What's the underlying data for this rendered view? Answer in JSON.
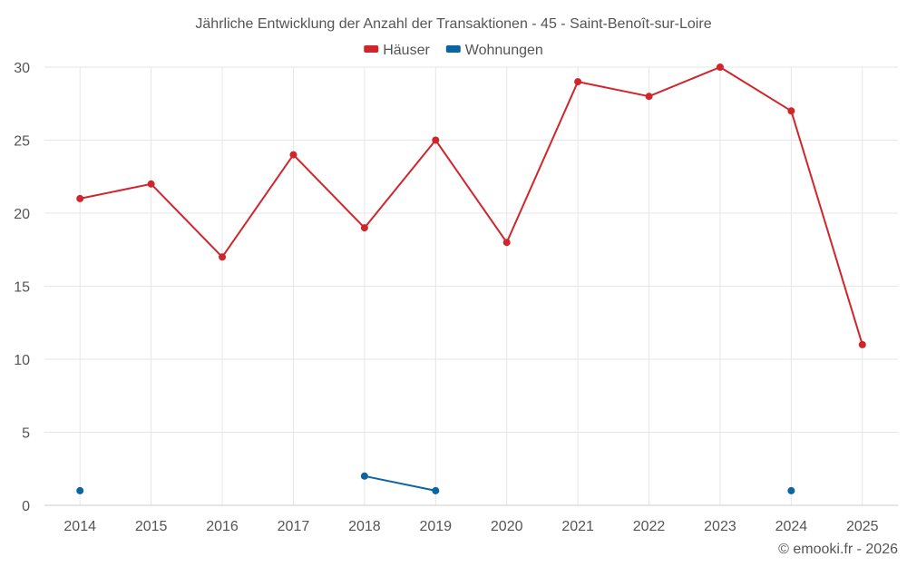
{
  "chart_data": {
    "type": "line",
    "title": "Jährliche Entwicklung der Anzahl der Transaktionen - 45 - Saint-Benoît-sur-Loire",
    "categories": [
      "2014",
      "2015",
      "2016",
      "2017",
      "2018",
      "2019",
      "2020",
      "2021",
      "2022",
      "2023",
      "2024",
      "2025"
    ],
    "ylim": [
      0,
      30
    ],
    "yticks": [
      0,
      5,
      10,
      15,
      20,
      25,
      30
    ],
    "grid": true,
    "legend_position": "top-center",
    "series": [
      {
        "name": "Häuser",
        "color": "#d0262b",
        "values": [
          21,
          22,
          17,
          24,
          19,
          25,
          18,
          29,
          28,
          30,
          27,
          11
        ]
      },
      {
        "name": "Wohnungen",
        "color": "#0b65a0",
        "values": [
          1,
          null,
          null,
          null,
          2,
          1,
          null,
          null,
          null,
          null,
          1,
          null
        ]
      }
    ],
    "credit": "© emooki.fr - 2026"
  }
}
